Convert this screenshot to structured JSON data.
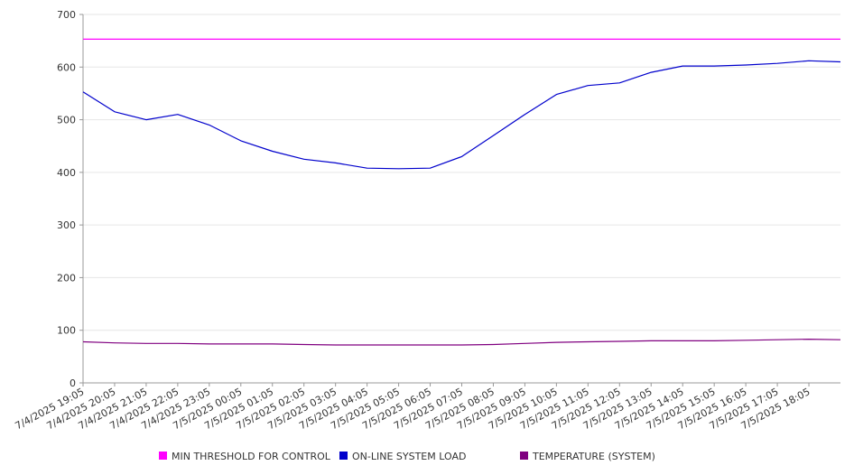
{
  "chart_data": {
    "type": "line",
    "ylim": [
      0,
      700
    ],
    "y_ticks": [
      0,
      100,
      200,
      300,
      400,
      500,
      600,
      700
    ],
    "x_ticks": [
      "7/4/2025 19:05",
      "7/4/2025 20:05",
      "7/4/2025 21:05",
      "7/4/2025 22:05",
      "7/4/2025 23:05",
      "7/5/2025 00:05",
      "7/5/2025 01:05",
      "7/5/2025 02:05",
      "7/5/2025 03:05",
      "7/5/2025 04:05",
      "7/5/2025 05:05",
      "7/5/2025 06:05",
      "7/5/2025 07:05",
      "7/5/2025 08:05",
      "7/5/2025 09:05",
      "7/5/2025 10:05",
      "7/5/2025 11:05",
      "7/5/2025 12:05",
      "7/5/2025 13:05",
      "7/5/2025 14:05",
      "7/5/2025 15:05",
      "7/5/2025 16:05",
      "7/5/2025 17:05",
      "7/5/2025 18:05"
    ],
    "grid": true,
    "legend_position": "bottom",
    "series": [
      {
        "name": "MIN THRESHOLD FOR CONTROL",
        "color": "#ff00ff",
        "values": [
          653,
          653,
          653,
          653,
          653,
          653,
          653,
          653,
          653,
          653,
          653,
          653,
          653,
          653,
          653,
          653,
          653,
          653,
          653,
          653,
          653,
          653,
          653,
          653,
          653
        ]
      },
      {
        "name": "ON-LINE SYSTEM LOAD",
        "color": "#0000cc",
        "values": [
          553,
          515,
          500,
          510,
          490,
          460,
          440,
          425,
          418,
          408,
          407,
          408,
          430,
          470,
          510,
          548,
          565,
          570,
          590,
          602,
          602,
          604,
          607,
          612,
          610
        ]
      },
      {
        "name": "TEMPERATURE (SYSTEM)",
        "color": "#800080",
        "values": [
          78,
          76,
          75,
          75,
          74,
          74,
          74,
          73,
          72,
          72,
          72,
          72,
          72,
          73,
          75,
          77,
          78,
          79,
          80,
          80,
          80,
          81,
          82,
          83,
          82
        ]
      }
    ]
  }
}
